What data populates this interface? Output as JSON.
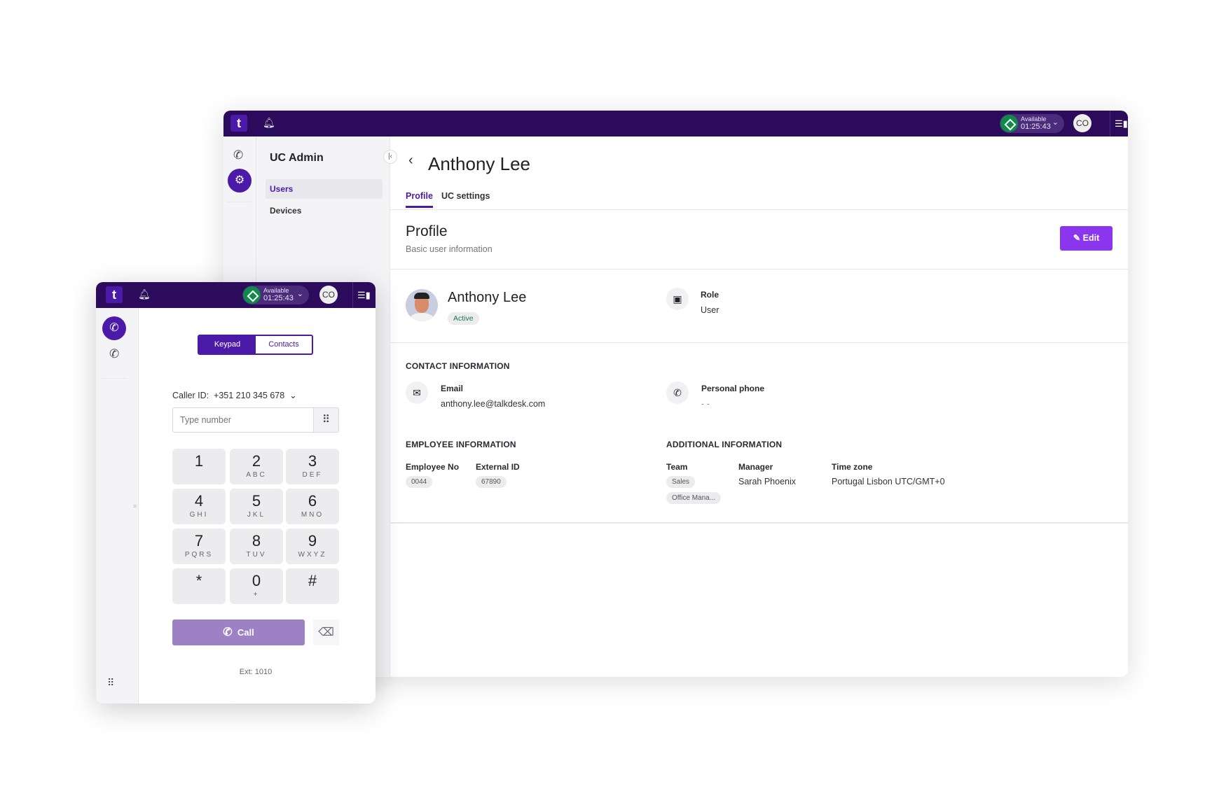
{
  "main_window": {
    "header": {
      "logo": "t",
      "bell_icon": "bell-icon",
      "status": "Available",
      "timer": "01:25:43",
      "avatar": "CO"
    },
    "sidebar": {
      "title": "UC Admin",
      "items": [
        {
          "label": "Users",
          "selected": true
        },
        {
          "label": "Devices",
          "selected": false
        }
      ]
    },
    "page": {
      "title": "Anthony Lee",
      "tabs": [
        {
          "label": "Profile",
          "active": true
        },
        {
          "label": "UC settings",
          "active": false
        }
      ],
      "section_title": "Profile",
      "section_subtitle": "Basic user information",
      "edit_label": "Edit",
      "user": {
        "name": "Anthony Lee",
        "status": "Active",
        "role_label": "Role",
        "role_value": "User"
      },
      "contact": {
        "header": "CONTACT INFORMATION",
        "email_label": "Email",
        "email_value": "anthony.lee@talkdesk.com",
        "phone_label": "Personal phone",
        "phone_value": "- -"
      },
      "employee": {
        "header": "EMPLOYEE INFORMATION",
        "employee_no_label": "Employee No",
        "employee_no": "0044",
        "external_id_label": "External ID",
        "external_id": "67890"
      },
      "additional": {
        "header": "ADDITIONAL INFORMATION",
        "team_label": "Team",
        "teams": [
          "Sales",
          "Office Mana..."
        ],
        "manager_label": "Manager",
        "manager": "Sarah Phoenix",
        "timezone_label": "Time zone",
        "timezone": "Portugal Lisbon UTC/GMT+0"
      }
    }
  },
  "dialer": {
    "header": {
      "logo": "t",
      "status": "Available",
      "timer": "01:25:43",
      "avatar": "CO"
    },
    "tabs": [
      {
        "label": "Keypad",
        "active": true
      },
      {
        "label": "Contacts",
        "active": false
      }
    ],
    "caller_id_label": "Caller ID:",
    "caller_id_value": "+351 210 345 678",
    "input_placeholder": "Type number",
    "keys": [
      {
        "d": "1",
        "s": ""
      },
      {
        "d": "2",
        "s": "ABC"
      },
      {
        "d": "3",
        "s": "DEF"
      },
      {
        "d": "4",
        "s": "GHI"
      },
      {
        "d": "5",
        "s": "JKL"
      },
      {
        "d": "6",
        "s": "MNO"
      },
      {
        "d": "7",
        "s": "PQRS"
      },
      {
        "d": "8",
        "s": "TUV"
      },
      {
        "d": "9",
        "s": "WXYZ"
      },
      {
        "d": "*",
        "s": ""
      },
      {
        "d": "0",
        "s": "+"
      },
      {
        "d": "#",
        "s": ""
      }
    ],
    "call_label": "Call",
    "ext": "Ext: 1010"
  },
  "colors": {
    "header": "#2c0a5c",
    "accent": "#4b1aa8",
    "edit_button": "#8b35ef",
    "call_button": "#9e80c4",
    "available": "#0f8a4a"
  }
}
